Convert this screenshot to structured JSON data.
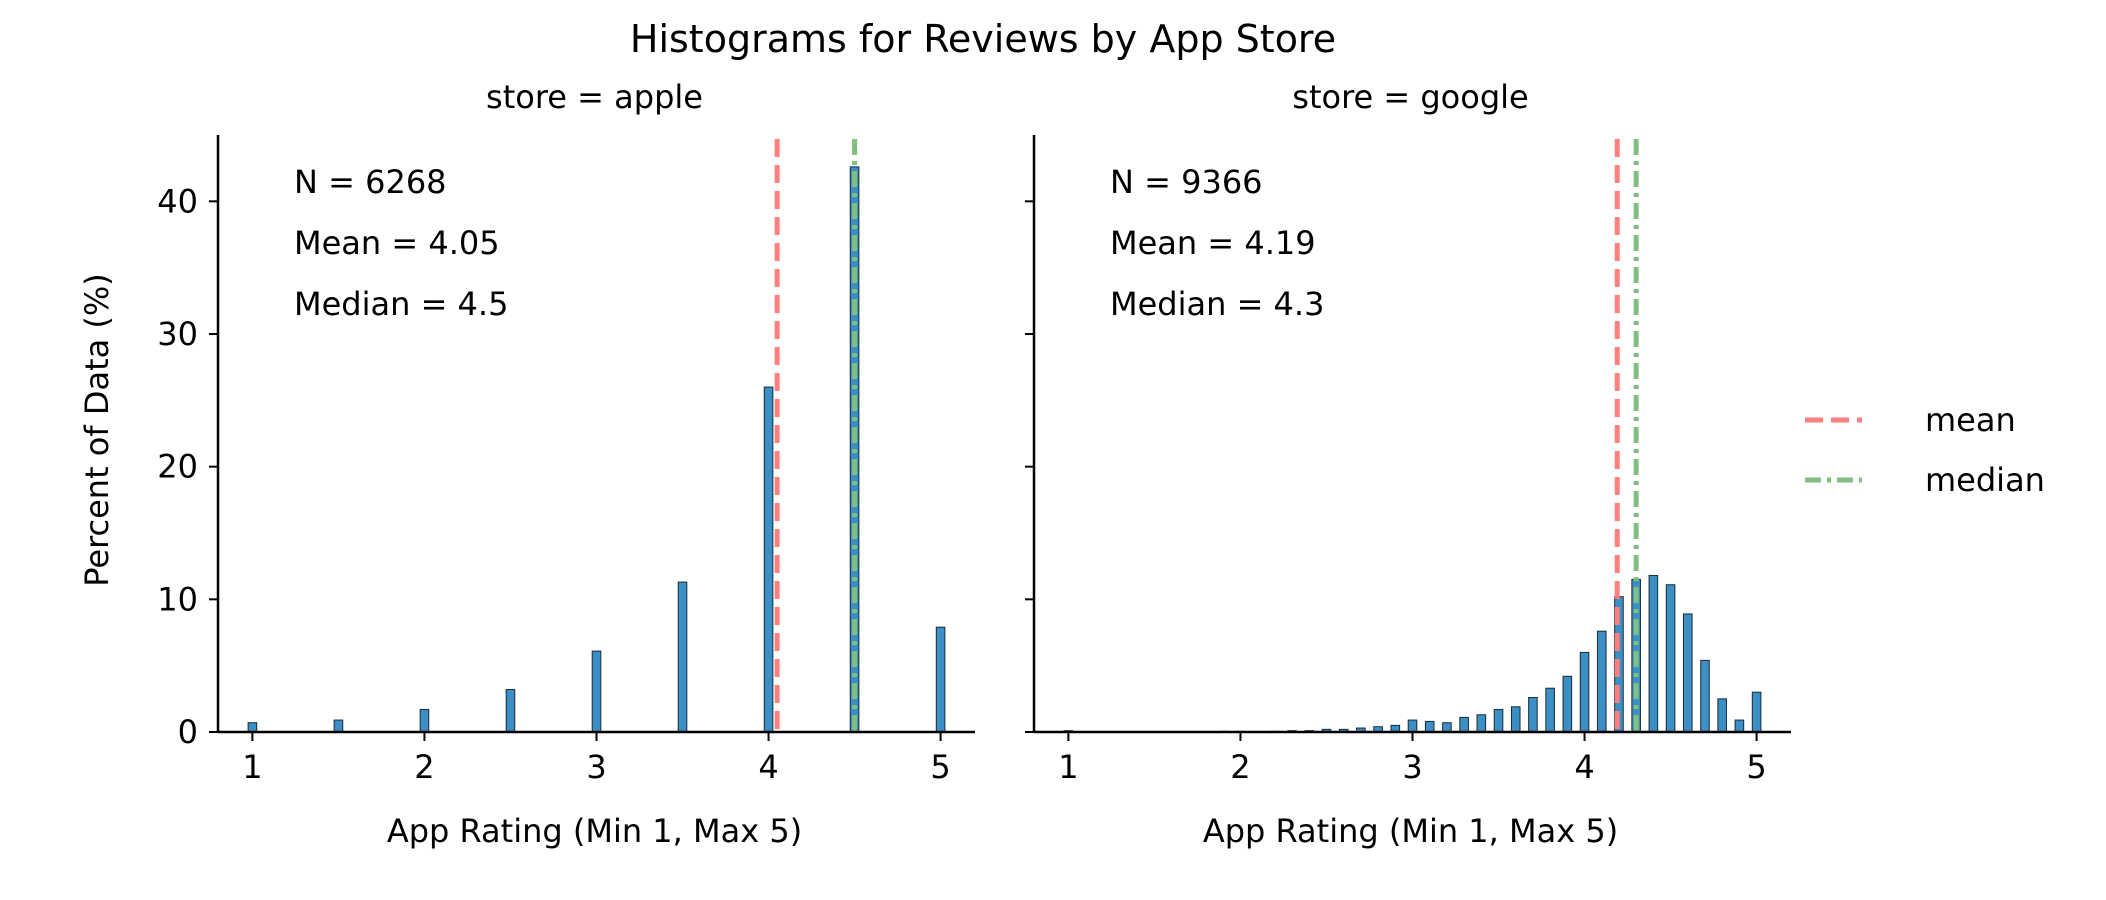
{
  "title": "Histograms for Reviews by App Store",
  "ylabel": "Percent of Data (%)",
  "legend": {
    "mean": "mean",
    "median": "median"
  },
  "colors": {
    "bar": "#3b8fc4",
    "bar_edge": "#1c2b38",
    "mean": "#ff7f7f",
    "median": "#7fbf7f",
    "axis": "#000000"
  },
  "chart_data": [
    {
      "type": "bar",
      "panel_title": "store = apple",
      "xlabel": "App Rating (Min 1, Max 5)",
      "xlim": [
        0.8,
        5.2
      ],
      "ylim": [
        0,
        45
      ],
      "x_ticks": [
        "1",
        "2",
        "3",
        "4",
        "5"
      ],
      "y_ticks": [
        "0",
        "10",
        "20",
        "30",
        "40"
      ],
      "stats_text": [
        "N = 6268",
        "Mean = 4.05",
        "Median = 4.5"
      ],
      "mean": 4.05,
      "median": 4.5,
      "bin_width": 0.05,
      "bins": [
        [
          1.0,
          0.7
        ],
        [
          1.5,
          0.9
        ],
        [
          2.0,
          1.7
        ],
        [
          2.5,
          3.2
        ],
        [
          3.0,
          6.1
        ],
        [
          3.5,
          11.3
        ],
        [
          4.0,
          26.0
        ],
        [
          4.5,
          42.6
        ],
        [
          5.0,
          7.9
        ]
      ]
    },
    {
      "type": "bar",
      "panel_title": "store = google",
      "xlabel": "App Rating (Min 1, Max 5)",
      "xlim": [
        0.8,
        5.2
      ],
      "ylim": [
        0,
        45
      ],
      "x_ticks": [
        "1",
        "2",
        "3",
        "4",
        "5"
      ],
      "y_ticks": [
        "0",
        "10",
        "20",
        "30",
        "40"
      ],
      "stats_text": [
        "N = 9366",
        "Mean = 4.19",
        "Median = 4.3"
      ],
      "mean": 4.19,
      "median": 4.3,
      "bin_width": 0.05,
      "bins": [
        [
          1.0,
          0.1
        ],
        [
          1.9,
          0.05
        ],
        [
          2.0,
          0.05
        ],
        [
          2.2,
          0.05
        ],
        [
          2.3,
          0.1
        ],
        [
          2.4,
          0.1
        ],
        [
          2.5,
          0.2
        ],
        [
          2.6,
          0.2
        ],
        [
          2.7,
          0.3
        ],
        [
          2.8,
          0.4
        ],
        [
          2.9,
          0.5
        ],
        [
          3.0,
          0.9
        ],
        [
          3.1,
          0.8
        ],
        [
          3.2,
          0.7
        ],
        [
          3.3,
          1.1
        ],
        [
          3.4,
          1.3
        ],
        [
          3.5,
          1.7
        ],
        [
          3.6,
          1.9
        ],
        [
          3.7,
          2.6
        ],
        [
          3.8,
          3.3
        ],
        [
          3.9,
          4.2
        ],
        [
          4.0,
          6.0
        ],
        [
          4.1,
          7.6
        ],
        [
          4.2,
          10.2
        ],
        [
          4.3,
          11.5
        ],
        [
          4.4,
          11.8
        ],
        [
          4.5,
          11.1
        ],
        [
          4.6,
          8.9
        ],
        [
          4.7,
          5.4
        ],
        [
          4.8,
          2.5
        ],
        [
          4.9,
          0.9
        ],
        [
          5.0,
          3.0
        ]
      ]
    }
  ]
}
